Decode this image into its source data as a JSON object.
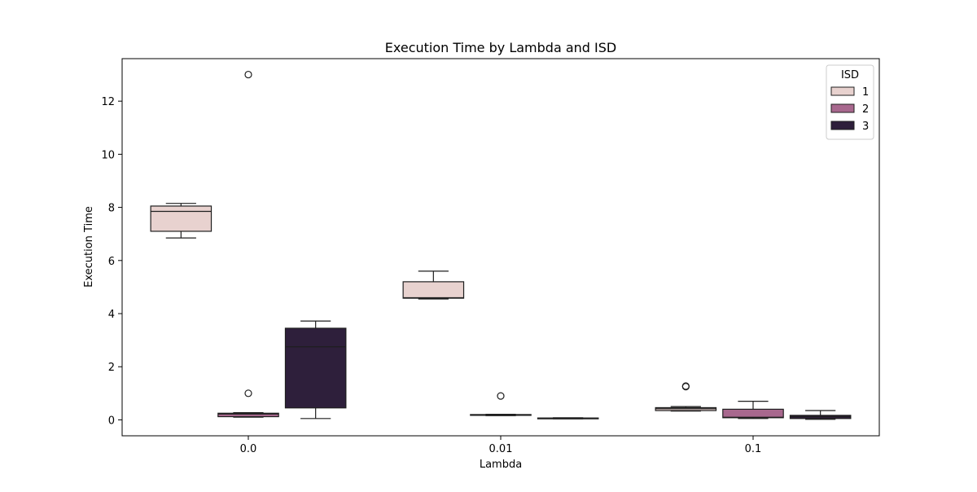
{
  "chart_data": {
    "type": "box",
    "title": "Execution Time by Lambda and ISD",
    "xlabel": "Lambda",
    "ylabel": "Execution Time",
    "categories": [
      "0.0",
      "0.01",
      "0.1"
    ],
    "ylim": [
      -0.6,
      13.6
    ],
    "yticks": [
      0,
      2,
      4,
      6,
      8,
      10,
      12
    ],
    "grid": false,
    "legend": {
      "title": "ISD",
      "placement": "top-right"
    },
    "series": [
      {
        "name": "1",
        "color": "#e8d2cf",
        "boxes": [
          {
            "category": "0.0",
            "whisker_low": 6.85,
            "q1": 7.1,
            "median": 7.85,
            "q3": 8.05,
            "whisker_high": 8.15,
            "outliers": []
          },
          {
            "category": "0.01",
            "whisker_low": 4.55,
            "q1": 4.58,
            "median": 4.6,
            "q3": 5.2,
            "whisker_high": 5.6,
            "outliers": []
          },
          {
            "category": "0.1",
            "whisker_low": 0.33,
            "q1": 0.35,
            "median": 0.42,
            "q3": 0.46,
            "whisker_high": 0.5,
            "outliers": [
              1.25,
              1.27
            ]
          }
        ]
      },
      {
        "name": "2",
        "color": "#a8688e",
        "boxes": [
          {
            "category": "0.0",
            "whisker_low": 0.1,
            "q1": 0.12,
            "median": 0.22,
            "q3": 0.25,
            "whisker_high": 0.27,
            "outliers": [
              1.0,
              13.0
            ]
          },
          {
            "category": "0.01",
            "whisker_low": 0.16,
            "q1": 0.17,
            "median": 0.19,
            "q3": 0.2,
            "whisker_high": 0.21,
            "outliers": [
              0.9
            ]
          },
          {
            "category": "0.1",
            "whisker_low": 0.05,
            "q1": 0.08,
            "median": 0.1,
            "q3": 0.4,
            "whisker_high": 0.7,
            "outliers": []
          }
        ]
      },
      {
        "name": "3",
        "color": "#2e1f3b",
        "boxes": [
          {
            "category": "0.0",
            "whisker_low": 0.05,
            "q1": 0.45,
            "median": 2.75,
            "q3": 3.45,
            "whisker_high": 3.72,
            "outliers": []
          },
          {
            "category": "0.01",
            "whisker_low": 0.04,
            "q1": 0.05,
            "median": 0.06,
            "q3": 0.07,
            "whisker_high": 0.08,
            "outliers": []
          },
          {
            "category": "0.1",
            "whisker_low": 0.02,
            "q1": 0.05,
            "median": 0.12,
            "q3": 0.17,
            "whisker_high": 0.35,
            "outliers": []
          }
        ]
      }
    ]
  }
}
